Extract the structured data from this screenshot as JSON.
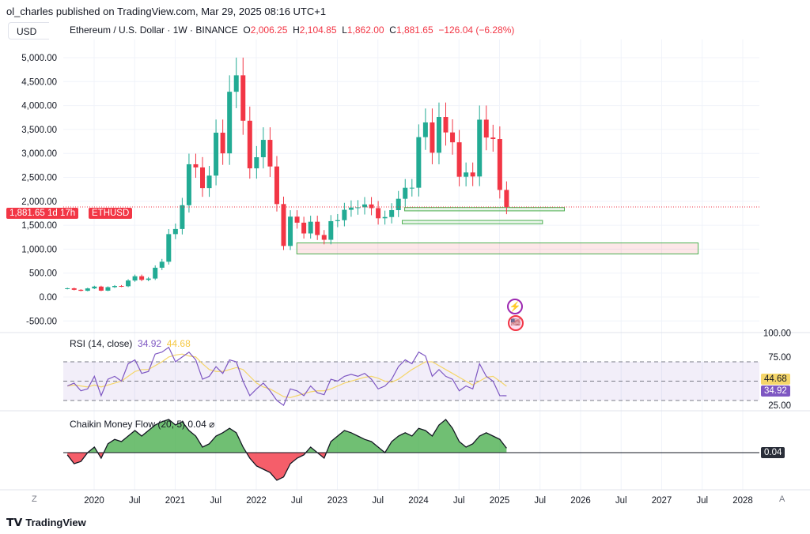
{
  "header": {
    "published": "ol_charles published on TradingView.com, Mar 29, 2025 08:16 UTC+1",
    "currency": "USD"
  },
  "legend": {
    "symbol": "Ethereum / U.S. Dollar · 1W · BINANCE",
    "o_label": "O",
    "o": "2,006.25",
    "h_label": "H",
    "h": "2,104.85",
    "l_label": "L",
    "l": "1,862.00",
    "c_label": "C",
    "c": "1,881.65",
    "change": "−126.04 (−6.28%)"
  },
  "price_tag": {
    "price": "1,881.65",
    "countdown": "1d 17h",
    "symbol": "ETHUSD",
    "value": 1881.65
  },
  "colors": {
    "up": "#22ab94",
    "down": "#f23645",
    "rsi": "#7e57c2",
    "rsi_ma": "#f5d66a",
    "cmf_pos": "#4caf50",
    "cmf_neg": "#f23645"
  },
  "rsi": {
    "title": "RSI (14, close)",
    "value": "34.92",
    "ma_value": "44.68",
    "axis": [
      "100.00",
      "75.00",
      "25.00"
    ]
  },
  "cmf": {
    "title": "Chaikin Money Flow (20, 5)",
    "value": "0.04",
    "extra": "⌀",
    "tag": "0.04"
  },
  "footer": {
    "brand": "TradingView"
  },
  "axis": {
    "z": "Z",
    "a": "A"
  },
  "chart_data": {
    "type": "candlestick",
    "price_ticks": [
      5000,
      4500,
      4000,
      3500,
      3000,
      2500,
      2000,
      1500,
      1000,
      500,
      0,
      -500
    ],
    "price_tick_labels": [
      "5,000.00",
      "4,500.00",
      "4,000.00",
      "3,500.00",
      "3,000.00",
      "2,500.00",
      "2,000.00",
      "1,500.00",
      "1,000.00",
      "500.00",
      "0.00",
      "-500.00"
    ],
    "time_ticks": [
      {
        "t": 2020,
        "label": "2020"
      },
      {
        "t": 2020.5,
        "label": "Jul"
      },
      {
        "t": 2021,
        "label": "2021"
      },
      {
        "t": 2021.5,
        "label": "Jul"
      },
      {
        "t": 2022,
        "label": "2022"
      },
      {
        "t": 2022.5,
        "label": "Jul"
      },
      {
        "t": 2023,
        "label": "2023"
      },
      {
        "t": 2023.5,
        "label": "Jul"
      },
      {
        "t": 2024,
        "label": "2024"
      },
      {
        "t": 2024.5,
        "label": "Jul"
      },
      {
        "t": 2025,
        "label": "2025"
      },
      {
        "t": 2025.5,
        "label": "Jul"
      },
      {
        "t": 2026,
        "label": "2026"
      },
      {
        "t": 2026.5,
        "label": "Jul"
      },
      {
        "t": 2027,
        "label": "2027"
      },
      {
        "t": 2027.5,
        "label": "Jul"
      },
      {
        "t": 2028,
        "label": "2028"
      }
    ],
    "start": 2019.67,
    "monthly_close": [
      182,
      151,
      130,
      180,
      218,
      133,
      206,
      231,
      225,
      345,
      434,
      359,
      386,
      612,
      737,
      1314,
      1421,
      1918,
      2773,
      2707,
      2275,
      2536,
      3433,
      3001,
      4288,
      4631,
      3683,
      2688,
      2920,
      3283,
      2727,
      1942,
      1067,
      1679,
      1553,
      1328,
      1573,
      1295,
      1196,
      1585,
      1605,
      1822,
      1869,
      1874,
      1934,
      1857,
      1645,
      1671,
      1815,
      2052,
      2282,
      2283,
      3340,
      3647,
      3014,
      3762,
      3438,
      3232,
      2513,
      2602,
      2518,
      3705,
      3332,
      3300,
      2237,
      1881
    ],
    "zones": [
      {
        "from": 2023.83,
        "to": 2025.8,
        "low": 1800,
        "high": 1870,
        "color": "green"
      },
      {
        "from": 2023.8,
        "to": 2025.53,
        "low": 1530,
        "high": 1600,
        "color": "green"
      },
      {
        "from": 2022.5,
        "to": 2027.45,
        "low": 900,
        "high": 1130,
        "color": "red"
      }
    ],
    "rsi_series": [
      45,
      48,
      40,
      42,
      55,
      35,
      52,
      55,
      50,
      68,
      72,
      58,
      60,
      78,
      80,
      85,
      70,
      75,
      80,
      72,
      52,
      55,
      65,
      58,
      72,
      70,
      50,
      35,
      42,
      48,
      40,
      30,
      25,
      42,
      40,
      35,
      45,
      38,
      36,
      52,
      50,
      55,
      57,
      55,
      58,
      52,
      42,
      45,
      52,
      65,
      72,
      68,
      80,
      76,
      55,
      62,
      55,
      52,
      40,
      45,
      42,
      68,
      55,
      50,
      35,
      34.92
    ],
    "rsi_ma_series": [
      45,
      46,
      45,
      44,
      46,
      44,
      46,
      48,
      50,
      55,
      60,
      62,
      62,
      66,
      70,
      75,
      77,
      78,
      76,
      75,
      68,
      62,
      60,
      60,
      62,
      64,
      62,
      55,
      48,
      44,
      42,
      38,
      34,
      33,
      35,
      37,
      39,
      40,
      40,
      42,
      45,
      48,
      50,
      52,
      54,
      55,
      53,
      50,
      49,
      52,
      57,
      62,
      66,
      70,
      70,
      66,
      62,
      58,
      54,
      50,
      46,
      50,
      54,
      55,
      50,
      44.68
    ],
    "rsi_levels": [
      70,
      50,
      30
    ],
    "cmf_series": [
      -0.02,
      -0.1,
      -0.08,
      0.0,
      0.05,
      -0.05,
      0.08,
      0.12,
      0.1,
      0.15,
      0.2,
      0.15,
      0.2,
      0.25,
      0.28,
      0.3,
      0.25,
      0.28,
      0.2,
      0.15,
      0.05,
      0.08,
      0.15,
      0.18,
      0.22,
      0.18,
      0.05,
      -0.05,
      -0.12,
      -0.15,
      -0.18,
      -0.25,
      -0.22,
      -0.1,
      -0.05,
      -0.02,
      0.05,
      0.0,
      -0.05,
      0.1,
      0.15,
      0.2,
      0.18,
      0.15,
      0.12,
      0.1,
      0.05,
      0.0,
      0.1,
      0.15,
      0.18,
      0.15,
      0.22,
      0.2,
      0.15,
      0.25,
      0.3,
      0.22,
      0.1,
      0.05,
      0.08,
      0.15,
      0.18,
      0.15,
      0.12,
      0.04
    ]
  }
}
